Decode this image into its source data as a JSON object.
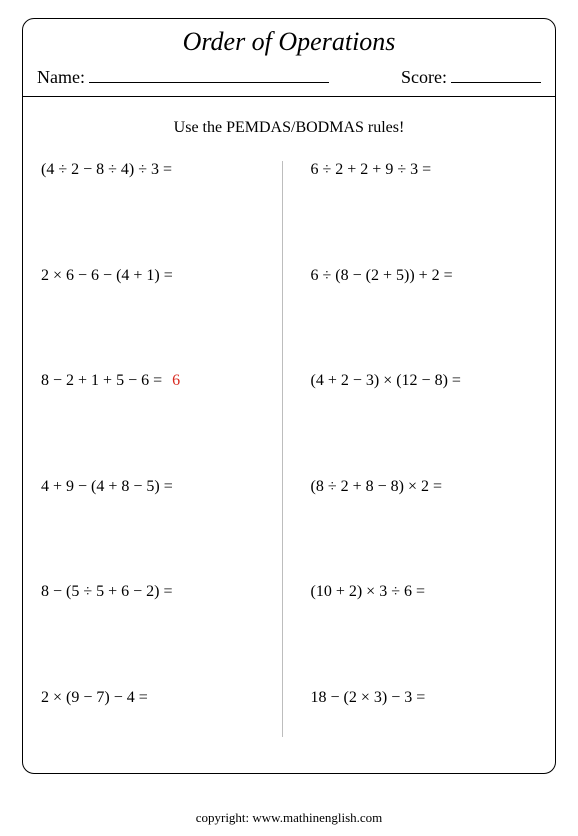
{
  "title": "Order of Operations",
  "name_label": "Name:",
  "score_label": "Score:",
  "instructions": "Use the PEMDAS/BODMAS rules!",
  "copyright": "copyright:   www.mathinenglish.com",
  "text_color": "#000000",
  "answer_color": "#d8281e",
  "divider_color": "#bdbdbd",
  "border_color": "#000000",
  "font_family": "Georgia, 'Times New Roman', serif",
  "title_fontsize": 26,
  "body_fontsize": 16,
  "problems_left": [
    {
      "expr": "(4 ÷ 2 − 8 ÷ 4) ÷ 3 =",
      "answer": ""
    },
    {
      "expr": "2 × 6 − 6 − (4 + 1) =",
      "answer": ""
    },
    {
      "expr": "8 − 2 + 1 + 5 − 6 =",
      "answer": "6"
    },
    {
      "expr": "4 + 9 − (4 + 8 − 5) =",
      "answer": ""
    },
    {
      "expr": "8 − (5 ÷ 5 + 6 − 2) =",
      "answer": ""
    },
    {
      "expr": "2 × (9 − 7) − 4 =",
      "answer": ""
    }
  ],
  "problems_right": [
    {
      "expr": "6 ÷ 2 + 2 + 9 ÷ 3 =",
      "answer": ""
    },
    {
      "expr": "6 ÷ (8 − (2 + 5))  + 2 =",
      "answer": ""
    },
    {
      "expr": "(4 + 2 − 3) × (12 − 8) =",
      "answer": ""
    },
    {
      "expr": "(8 ÷ 2 + 8 − 8) × 2 =",
      "answer": ""
    },
    {
      "expr": "(10 + 2) × 3 ÷ 6 =",
      "answer": ""
    },
    {
      "expr": "18 − (2 × 3) − 3 =",
      "answer": ""
    }
  ]
}
